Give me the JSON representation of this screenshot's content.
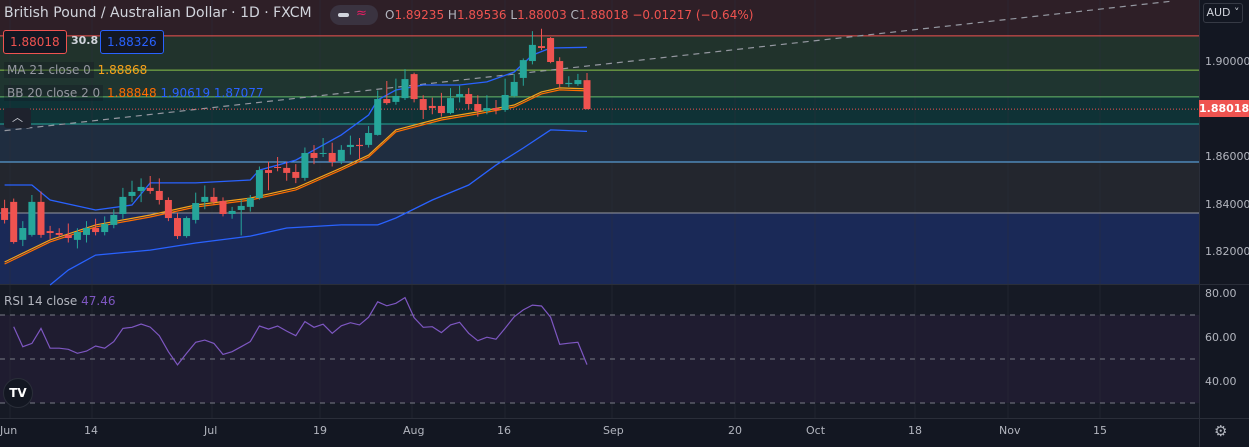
{
  "header": {
    "title": "British Pound / Australian Dollar · 1D · FXCM",
    "ohlc": {
      "o_label": "O",
      "o": "1.89235",
      "h_label": "H",
      "h": "1.89536",
      "l_label": "L",
      "l": "1.88003",
      "c_label": "C",
      "c": "1.88018",
      "change": "−0.01217 (−0.64%)"
    },
    "sell_price": "1.88018",
    "spread": "30.8",
    "buy_price": "1.88326",
    "collapse_icon": "chevron-up-icon"
  },
  "indicators": {
    "ma": {
      "label": "MA 21 close 0",
      "value": "1.88868"
    },
    "bb": {
      "label": "BB 20 close 2 0",
      "basis": "1.88848",
      "upper": "1.90619",
      "lower": "1.87077"
    },
    "rsi": {
      "label": "RSI 14 close",
      "value": "47.46"
    }
  },
  "price_axis": {
    "currency": "AUD",
    "ticks": [
      "1.90000",
      "1.86000",
      "1.84000",
      "1.82000"
    ],
    "current": "1.88018"
  },
  "rsi_axis": {
    "ticks": [
      "80.00",
      "60.00",
      "40.00"
    ]
  },
  "time_axis": {
    "ticks": [
      "Jun",
      "14",
      "Jul",
      "19",
      "Aug",
      "16",
      "Sep",
      "20",
      "Oct",
      "18",
      "Nov",
      "15"
    ]
  },
  "colors": {
    "up": "#26a69a",
    "down": "#ef5350",
    "ma": "#f7a21b",
    "bb_band": "#2962ff",
    "rsi": "#7e57c2",
    "background": "#131722"
  },
  "chart_data": [
    {
      "type": "candlestick",
      "title": "British Pound / Australian Dollar · 1D · FXCM",
      "ylim": [
        1.805,
        1.925
      ],
      "candles_ohlc": [
        [
          1.8385,
          1.842,
          1.832,
          1.8335
        ],
        [
          1.8411,
          1.8425,
          1.8235,
          1.8242
        ],
        [
          1.8251,
          1.833,
          1.8225,
          1.8301
        ],
        [
          1.8272,
          1.844,
          1.8265,
          1.8411
        ],
        [
          1.8411,
          1.8455,
          1.826,
          1.8272
        ],
        [
          1.8288,
          1.831,
          1.8255,
          1.828
        ],
        [
          1.828,
          1.83,
          1.8262,
          1.8272
        ],
        [
          1.8272,
          1.832,
          1.824,
          1.8259
        ],
        [
          1.8251,
          1.83,
          1.8215,
          1.8284
        ],
        [
          1.8272,
          1.833,
          1.824,
          1.8301
        ],
        [
          1.8301,
          1.834,
          1.827,
          1.8284
        ],
        [
          1.8284,
          1.835,
          1.827,
          1.8318
        ],
        [
          1.8314,
          1.838,
          1.83,
          1.8356
        ],
        [
          1.836,
          1.847,
          1.834,
          1.8432
        ],
        [
          1.8436,
          1.85,
          1.841,
          1.8453
        ],
        [
          1.8457,
          1.851,
          1.841,
          1.8474
        ],
        [
          1.847,
          1.852,
          1.8445,
          1.8457
        ],
        [
          1.8457,
          1.851,
          1.84,
          1.8419
        ],
        [
          1.8419,
          1.843,
          1.833,
          1.8343
        ],
        [
          1.8343,
          1.8365,
          1.8255,
          1.8267
        ],
        [
          1.8267,
          1.835,
          1.826,
          1.8343
        ],
        [
          1.8335,
          1.845,
          1.832,
          1.8406
        ],
        [
          1.8411,
          1.848,
          1.838,
          1.8432
        ],
        [
          1.8432,
          1.847,
          1.84,
          1.8411
        ],
        [
          1.8415,
          1.843,
          1.835,
          1.836
        ],
        [
          1.836,
          1.839,
          1.834,
          1.8373
        ],
        [
          1.8377,
          1.842,
          1.827,
          1.8394
        ],
        [
          1.839,
          1.844,
          1.837,
          1.8427
        ],
        [
          1.8427,
          1.856,
          1.842,
          1.8545
        ],
        [
          1.8545,
          1.858,
          1.846,
          1.8533
        ],
        [
          1.8558,
          1.86,
          1.854,
          1.8554
        ],
        [
          1.8554,
          1.858,
          1.85,
          1.8533
        ],
        [
          1.8537,
          1.857,
          1.849,
          1.8512
        ],
        [
          1.8512,
          1.864,
          1.85,
          1.8617
        ],
        [
          1.8617,
          1.865,
          1.857,
          1.8596
        ],
        [
          1.8613,
          1.868,
          1.86,
          1.8617
        ],
        [
          1.8617,
          1.866,
          1.856,
          1.8579
        ],
        [
          1.8583,
          1.865,
          1.857,
          1.863
        ],
        [
          1.8642,
          1.869,
          1.861,
          1.8651
        ],
        [
          1.8651,
          1.868,
          1.859,
          1.8646
        ],
        [
          1.8651,
          1.873,
          1.864,
          1.8701
        ],
        [
          1.8693,
          1.888,
          1.869,
          1.8844
        ],
        [
          1.8844,
          1.892,
          1.882,
          1.8827
        ],
        [
          1.8832,
          1.893,
          1.882,
          1.8857
        ],
        [
          1.8848,
          1.897,
          1.884,
          1.8928
        ],
        [
          1.8949,
          1.8955,
          1.883,
          1.8844
        ],
        [
          1.8844,
          1.886,
          1.876,
          1.8798
        ],
        [
          1.8815,
          1.885,
          1.878,
          1.8806
        ],
        [
          1.8815,
          1.887,
          1.877,
          1.8785
        ],
        [
          1.8785,
          1.889,
          1.878,
          1.8848
        ],
        [
          1.8853,
          1.89,
          1.883,
          1.8865
        ],
        [
          1.8865,
          1.889,
          1.88,
          1.8823
        ],
        [
          1.8823,
          1.886,
          1.877,
          1.8794
        ],
        [
          1.8794,
          1.886,
          1.878,
          1.8806
        ],
        [
          1.8806,
          1.884,
          1.878,
          1.8798
        ],
        [
          1.8798,
          1.893,
          1.879,
          1.8861
        ],
        [
          1.8857,
          1.895,
          1.885,
          1.8916
        ],
        [
          1.8933,
          1.9015,
          1.89,
          1.9008
        ],
        [
          1.9004,
          1.913,
          1.899,
          1.9072
        ],
        [
          1.9067,
          1.914,
          1.905,
          1.9059
        ],
        [
          1.9101,
          1.9105,
          1.8995,
          1.9
        ],
        [
          1.9004,
          1.902,
          1.889,
          1.8907
        ],
        [
          1.8907,
          1.894,
          1.8895,
          1.8912
        ],
        [
          1.8907,
          1.895,
          1.89,
          1.8924
        ],
        [
          1.89235,
          1.89536,
          1.88003,
          1.88018
        ]
      ],
      "ma21_points": [
        [
          0,
          1.8158
        ],
        [
          5,
          1.8251
        ],
        [
          10,
          1.8314
        ],
        [
          16,
          1.8356
        ],
        [
          21,
          1.8398
        ],
        [
          27,
          1.8427
        ],
        [
          32,
          1.847
        ],
        [
          37,
          1.8554
        ],
        [
          40,
          1.8608
        ],
        [
          43,
          1.8714
        ],
        [
          48,
          1.8764
        ],
        [
          52,
          1.879
        ],
        [
          56,
          1.8819
        ],
        [
          59,
          1.8874
        ],
        [
          61,
          1.8891
        ],
        [
          64,
          1.88868
        ]
      ],
      "bb_upper_points": [
        [
          0,
          1.8482
        ],
        [
          3,
          1.8482
        ],
        [
          5,
          1.8419
        ],
        [
          10,
          1.8377
        ],
        [
          14,
          1.8398
        ],
        [
          16,
          1.8491
        ],
        [
          21,
          1.8491
        ],
        [
          27,
          1.8503
        ],
        [
          28,
          1.8545
        ],
        [
          32,
          1.8587
        ],
        [
          37,
          1.8693
        ],
        [
          40,
          1.8777
        ],
        [
          41,
          1.884
        ],
        [
          43,
          1.8882
        ],
        [
          46,
          1.8903
        ],
        [
          50,
          1.8903
        ],
        [
          53,
          1.8916
        ],
        [
          56,
          1.8958
        ],
        [
          58,
          1.9029
        ],
        [
          60,
          1.9059
        ],
        [
          64,
          1.90619
        ]
      ],
      "bb_lower_points": [
        [
          5,
          1.8061
        ],
        [
          7,
          1.8124
        ],
        [
          10,
          1.8187
        ],
        [
          16,
          1.8208
        ],
        [
          21,
          1.8238
        ],
        [
          27,
          1.8267
        ],
        [
          31,
          1.8301
        ],
        [
          37,
          1.8314
        ],
        [
          41,
          1.8314
        ],
        [
          43,
          1.8343
        ],
        [
          47,
          1.8419
        ],
        [
          51,
          1.8482
        ],
        [
          54,
          1.8566
        ],
        [
          57,
          1.8638
        ],
        [
          60,
          1.8714
        ],
        [
          64,
          1.87077
        ]
      ],
      "horizontal_levels": [
        1.911,
        1.8966,
        1.8853,
        1.8739,
        1.8579,
        1.8364
      ],
      "trend_line": [
        [
          0,
          1.8711
        ],
        [
          128,
          1.9255
        ]
      ]
    },
    {
      "type": "line",
      "title": "RSI 14 close",
      "ylim": [
        25,
        85
      ],
      "levels": [
        70,
        50,
        30
      ],
      "values": [
        64.7,
        55.6,
        57.1,
        63.9,
        54.9,
        54.9,
        54.4,
        52.6,
        53.6,
        55.9,
        54.9,
        57.9,
        63.9,
        64.4,
        65.9,
        64.5,
        60.6,
        53.3,
        47.3,
        52.6,
        57.6,
        58.6,
        57.1,
        52.1,
        53.3,
        55.6,
        57.9,
        65,
        63.6,
        65,
        62.7,
        60.6,
        67,
        64.4,
        65.8,
        61.7,
        65.1,
        66.5,
        65.5,
        69,
        76,
        74.2,
        75.3,
        77.9,
        68.8,
        64.4,
        64.7,
        62,
        65.5,
        66.7,
        61.7,
        58.3,
        59.9,
        59,
        64,
        69.2,
        72.3,
        74.5,
        74.1,
        69,
        56.7,
        57.2,
        57.6,
        47.46
      ]
    }
  ]
}
